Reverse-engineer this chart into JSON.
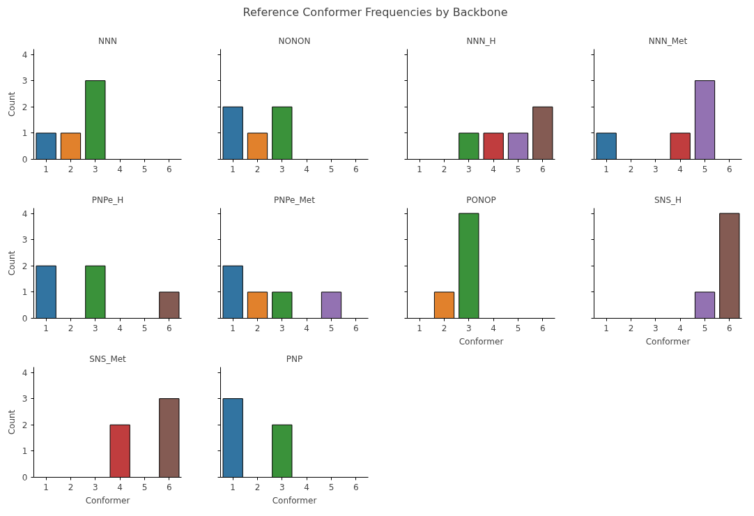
{
  "chart_data": [
    {
      "type": "other",
      "title": "Reference Conformer Frequencies by Backbone"
    },
    {
      "type": "bar",
      "title": "NNN",
      "ylabel": "Count",
      "categories": [
        "1",
        "2",
        "3",
        "4",
        "5",
        "6"
      ],
      "values": [
        1,
        1,
        3,
        null,
        null,
        null
      ],
      "colors": [
        "#3274a1",
        "#e1812c",
        "#3a923a",
        "#c03d3e",
        "#9372b2",
        "#845b53"
      ],
      "ylim": [
        0,
        4.2
      ],
      "yticks": [
        0,
        1,
        2,
        3,
        4
      ],
      "grid": false
    },
    {
      "type": "bar",
      "title": "NONON",
      "categories": [
        "1",
        "2",
        "3",
        "4",
        "5",
        "6"
      ],
      "values": [
        2,
        1,
        2,
        null,
        null,
        null
      ],
      "colors": [
        "#3274a1",
        "#e1812c",
        "#3a923a",
        "#c03d3e",
        "#9372b2",
        "#845b53"
      ],
      "ylim": [
        0,
        4.2
      ],
      "yticks": [
        0,
        1,
        2,
        3,
        4
      ],
      "tick_labels": "x",
      "grid": false
    },
    {
      "type": "bar",
      "title": "NNN_H",
      "categories": [
        "1",
        "2",
        "3",
        "4",
        "5",
        "6"
      ],
      "values": [
        null,
        null,
        1,
        1,
        1,
        2
      ],
      "colors": [
        "#3274a1",
        "#e1812c",
        "#3a923a",
        "#c03d3e",
        "#9372b2",
        "#845b53"
      ],
      "ylim": [
        0,
        4.2
      ],
      "yticks": [
        0,
        1,
        2,
        3,
        4
      ],
      "tick_labels": "x",
      "grid": false
    },
    {
      "type": "bar",
      "title": "NNN_Met",
      "categories": [
        "1",
        "2",
        "3",
        "4",
        "5",
        "6"
      ],
      "values": [
        1,
        null,
        null,
        1,
        3,
        null
      ],
      "colors": [
        "#3274a1",
        "#e1812c",
        "#3a923a",
        "#c03d3e",
        "#9372b2",
        "#845b53"
      ],
      "ylim": [
        0,
        4.2
      ],
      "yticks": [
        0,
        1,
        2,
        3,
        4
      ],
      "tick_labels": "x",
      "grid": false
    },
    {
      "type": "bar",
      "title": "PNPe_H",
      "ylabel": "Count",
      "categories": [
        "1",
        "2",
        "3",
        "4",
        "5",
        "6"
      ],
      "values": [
        2,
        null,
        2,
        null,
        null,
        1
      ],
      "colors": [
        "#3274a1",
        "#e1812c",
        "#3a923a",
        "#c03d3e",
        "#9372b2",
        "#845b53"
      ],
      "ylim": [
        0,
        4.2
      ],
      "yticks": [
        0,
        1,
        2,
        3,
        4
      ],
      "grid": false
    },
    {
      "type": "bar",
      "title": "PNPe_Met",
      "categories": [
        "1",
        "2",
        "3",
        "4",
        "5",
        "6"
      ],
      "values": [
        2,
        1,
        1,
        null,
        1,
        null
      ],
      "colors": [
        "#3274a1",
        "#e1812c",
        "#3a923a",
        "#c03d3e",
        "#9372b2",
        "#845b53"
      ],
      "ylim": [
        0,
        4.2
      ],
      "yticks": [
        0,
        1,
        2,
        3,
        4
      ],
      "tick_labels": "x",
      "grid": false
    },
    {
      "type": "bar",
      "title": "PONOP",
      "xlabel": "Conformer",
      "categories": [
        "1",
        "2",
        "3",
        "4",
        "5",
        "6"
      ],
      "values": [
        null,
        1,
        4,
        null,
        null,
        null
      ],
      "colors": [
        "#3274a1",
        "#e1812c",
        "#3a923a",
        "#c03d3e",
        "#9372b2",
        "#845b53"
      ],
      "ylim": [
        0,
        4.2
      ],
      "yticks": [
        0,
        1,
        2,
        3,
        4
      ],
      "tick_labels": "x",
      "grid": false
    },
    {
      "type": "bar",
      "title": "SNS_H",
      "xlabel": "Conformer",
      "categories": [
        "1",
        "2",
        "3",
        "4",
        "5",
        "6"
      ],
      "values": [
        null,
        null,
        null,
        null,
        1,
        4
      ],
      "colors": [
        "#3274a1",
        "#e1812c",
        "#3a923a",
        "#c03d3e",
        "#9372b2",
        "#845b53"
      ],
      "ylim": [
        0,
        4.2
      ],
      "yticks": [
        0,
        1,
        2,
        3,
        4
      ],
      "tick_labels": "x",
      "grid": false
    },
    {
      "type": "bar",
      "title": "SNS_Met",
      "xlabel": "Conformer",
      "ylabel": "Count",
      "categories": [
        "1",
        "2",
        "3",
        "4",
        "5",
        "6"
      ],
      "values": [
        null,
        null,
        null,
        2,
        null,
        3
      ],
      "colors": [
        "#3274a1",
        "#e1812c",
        "#3a923a",
        "#c03d3e",
        "#9372b2",
        "#845b53"
      ],
      "ylim": [
        0,
        4.2
      ],
      "yticks": [
        0,
        1,
        2,
        3,
        4
      ],
      "grid": false
    },
    {
      "type": "bar",
      "title": "PNP",
      "xlabel": "Conformer",
      "categories": [
        "1",
        "2",
        "3",
        "4",
        "5",
        "6"
      ],
      "values": [
        3,
        null,
        2,
        null,
        null,
        null
      ],
      "colors": [
        "#3274a1",
        "#e1812c",
        "#3a923a",
        "#c03d3e",
        "#9372b2",
        "#845b53"
      ],
      "ylim": [
        0,
        4.2
      ],
      "yticks": [
        0,
        1,
        2,
        3,
        4
      ],
      "tick_labels": "x",
      "grid": false
    }
  ]
}
